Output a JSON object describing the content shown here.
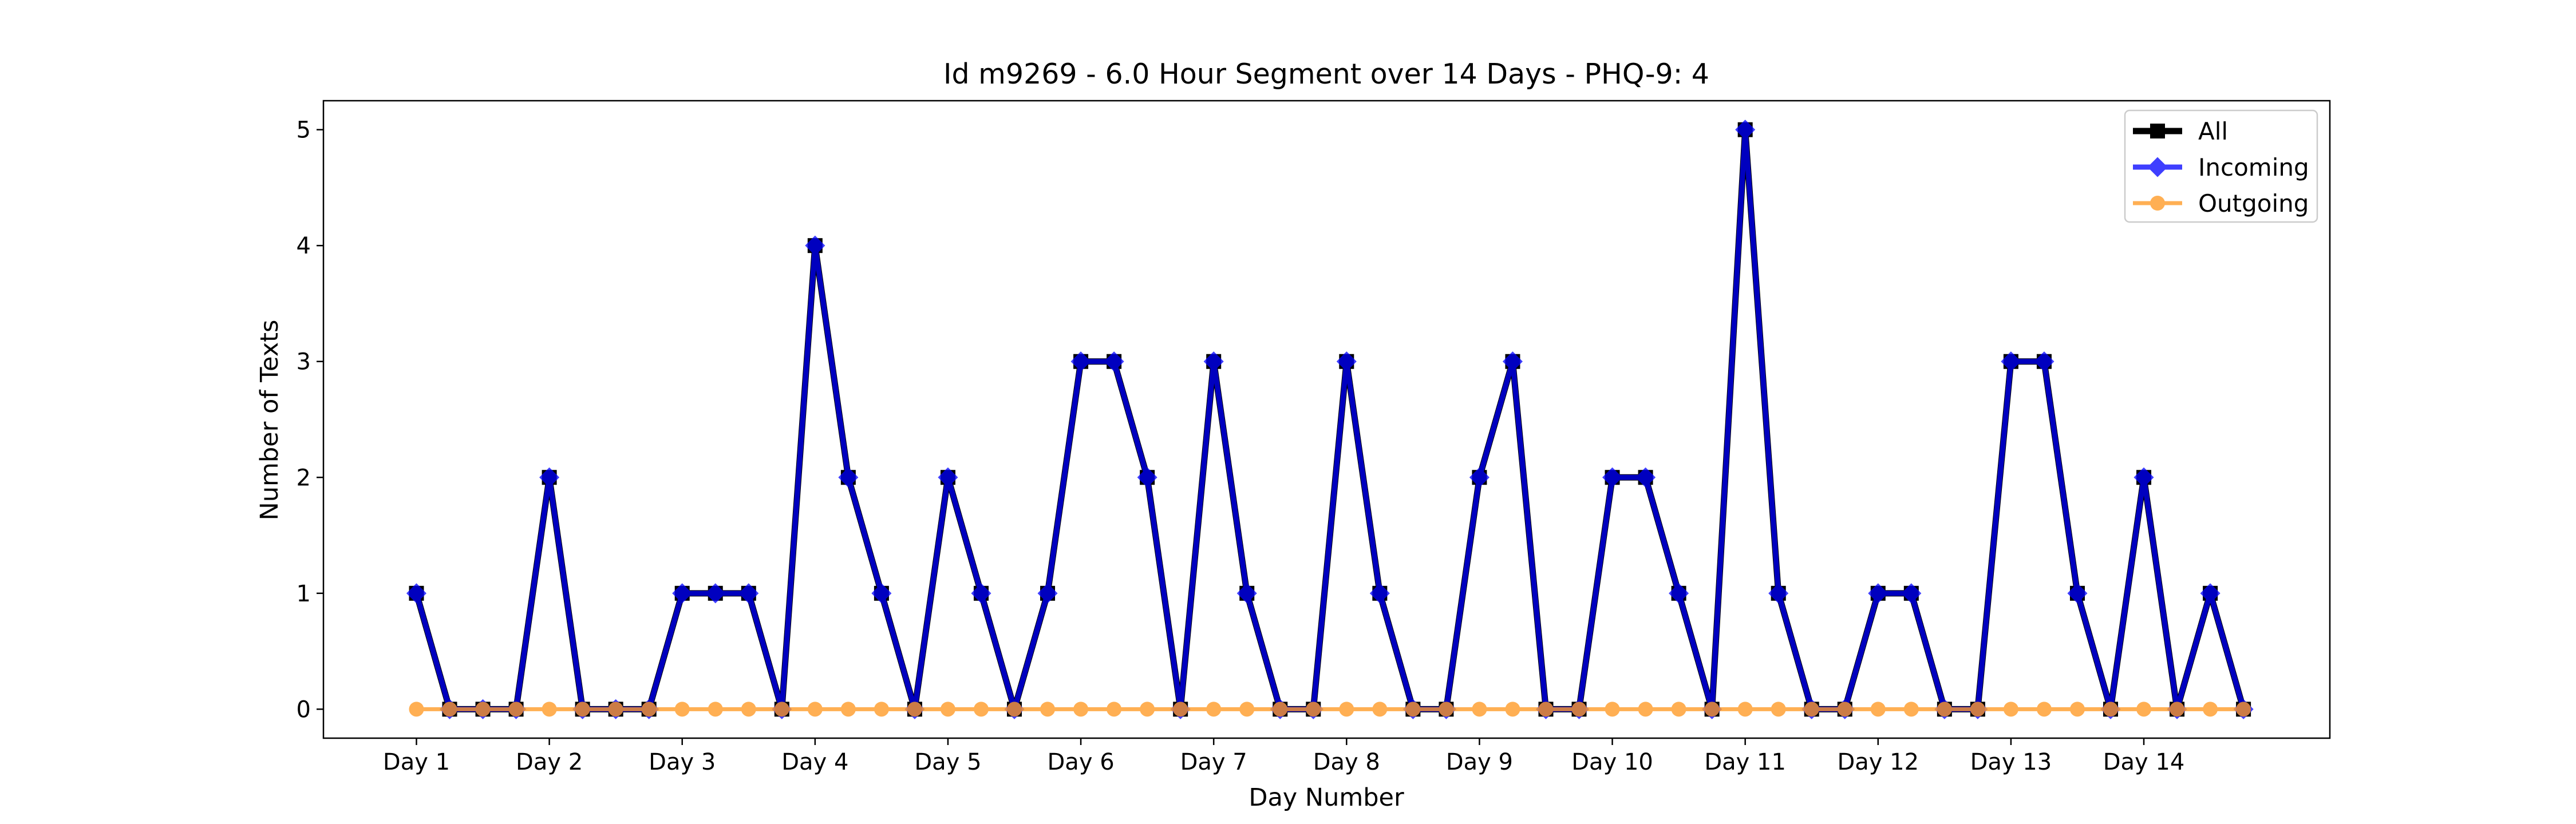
{
  "chart_data": {
    "type": "line",
    "title": "Id m9269 - 6.0 Hour Segment over 14 Days - PHQ-9: 4",
    "xlabel": "Day Number",
    "ylabel": "Number of Texts",
    "x_ticks": [
      "Day 1",
      "Day 2",
      "Day 3",
      "Day 4",
      "Day 5",
      "Day 6",
      "Day 7",
      "Day 8",
      "Day 9",
      "Day 10",
      "Day 11",
      "Day 12",
      "Day 13",
      "Day 14"
    ],
    "y_ticks": [
      0,
      1,
      2,
      3,
      4,
      5
    ],
    "xlim": [
      -0.7,
      14.4
    ],
    "ylim": [
      -0.25,
      5.25
    ],
    "x_step_per_point": 0.25,
    "legend_position": "top-right",
    "grid": false,
    "series": [
      {
        "name": "All",
        "color": "#000000",
        "marker": "square",
        "values": [
          1,
          0,
          0,
          0,
          2,
          0,
          0,
          0,
          1,
          1,
          1,
          0,
          4,
          2,
          1,
          0,
          2,
          1,
          0,
          1,
          3,
          3,
          2,
          0,
          3,
          1,
          0,
          0,
          3,
          1,
          0,
          0,
          2,
          3,
          0,
          0,
          2,
          2,
          1,
          0,
          5,
          1,
          0,
          0,
          1,
          1,
          0,
          0,
          3,
          3,
          1,
          0,
          2,
          0,
          1,
          0
        ]
      },
      {
        "name": "Incoming",
        "color": "#0000ff",
        "marker": "diamond",
        "values": [
          1,
          0,
          0,
          0,
          2,
          0,
          0,
          0,
          1,
          1,
          1,
          0,
          4,
          2,
          1,
          0,
          2,
          1,
          0,
          1,
          3,
          3,
          2,
          0,
          3,
          1,
          0,
          0,
          3,
          1,
          0,
          0,
          2,
          3,
          0,
          0,
          2,
          2,
          1,
          0,
          5,
          1,
          0,
          0,
          1,
          1,
          0,
          0,
          3,
          3,
          1,
          0,
          2,
          0,
          1,
          0
        ]
      },
      {
        "name": "Outgoing",
        "color": "#ff9c29",
        "marker": "circle",
        "values": [
          0,
          0,
          0,
          0,
          0,
          0,
          0,
          0,
          0,
          0,
          0,
          0,
          0,
          0,
          0,
          0,
          0,
          0,
          0,
          0,
          0,
          0,
          0,
          0,
          0,
          0,
          0,
          0,
          0,
          0,
          0,
          0,
          0,
          0,
          0,
          0,
          0,
          0,
          0,
          0,
          0,
          0,
          0,
          0,
          0,
          0,
          0,
          0,
          0,
          0,
          0,
          0,
          0,
          0,
          0,
          0
        ]
      }
    ]
  }
}
